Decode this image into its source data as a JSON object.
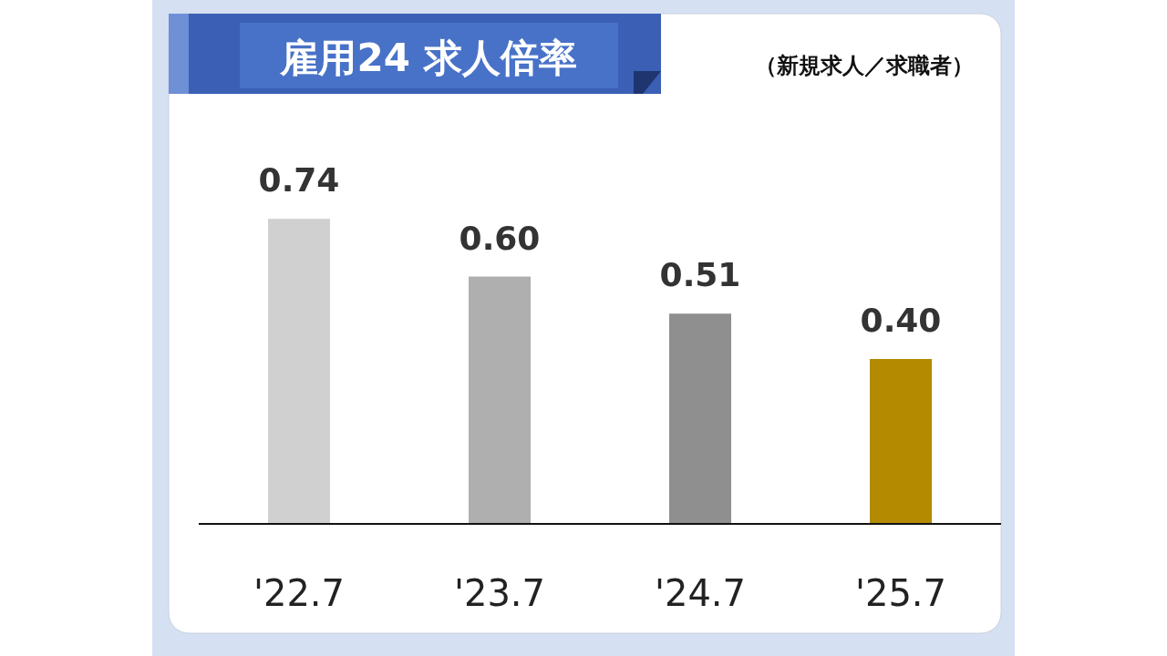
{
  "chart_data": {
    "type": "bar",
    "title": "雇用24 求人倍率",
    "subtitle": "（新規求人／求職者）",
    "categories": [
      "'22.7",
      "'23.7",
      "'24.7",
      "'25.7"
    ],
    "values": [
      0.74,
      0.6,
      0.51,
      0.4
    ],
    "colors": [
      "#d0d0d0",
      "#afafaf",
      "#8f8f8f",
      "#b38a00"
    ],
    "value_labels": [
      "0.74",
      "0.60",
      "0.51",
      "0.40"
    ]
  }
}
